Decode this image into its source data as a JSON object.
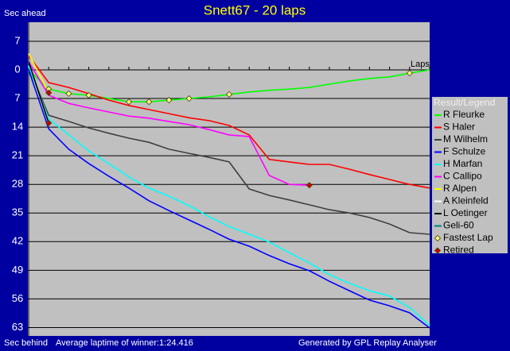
{
  "chart_data": {
    "type": "line",
    "title": "Snett67 - 20 laps",
    "y_label_top": "Sec ahead",
    "y_label_bottom": "Sec behind",
    "x_label": "Laps",
    "footer_note": "Average laptime of winner:1:24.416",
    "footer_credit": "Generated by GPL Replay Analyser",
    "legend_title": "Result/Legend",
    "grid": true,
    "y_inverted": true,
    "xlim": [
      0,
      20
    ],
    "ylim": [
      -11.65,
      65.05
    ],
    "yticks": [
      {
        "value": -7,
        "label": "7"
      },
      0,
      7,
      14,
      21,
      28,
      35,
      42,
      49,
      56,
      63
    ],
    "x": [
      0,
      1,
      2,
      3,
      4,
      5,
      6,
      7,
      8,
      9,
      10,
      11,
      12,
      13,
      14,
      15,
      16,
      17,
      18,
      19,
      20
    ],
    "series": [
      {
        "name": "R Fleurke",
        "color": "#00ff00",
        "values": [
          0,
          4.7,
          5.8,
          6.2,
          7,
          7.8,
          7.8,
          7.4,
          7,
          6.6,
          6,
          5.4,
          5,
          4.7,
          4.3,
          3.5,
          2.7,
          2.1,
          1.7,
          0.8,
          0
        ]
      },
      {
        "name": "S Haler",
        "color": "#ff0000",
        "values": [
          -3.5,
          3.1,
          4.3,
          5.8,
          7.4,
          8.7,
          9.7,
          10.7,
          11.7,
          12.4,
          13.6,
          15.9,
          21.9,
          22.5,
          23.1,
          23.1,
          24.3,
          25.6,
          26.8,
          28,
          28.9
        ]
      },
      {
        "name": "M Wilhelm",
        "color": "#404040",
        "values": [
          -0.6,
          11.1,
          12.6,
          14.2,
          15.5,
          16.7,
          17.7,
          19.4,
          20.4,
          21.4,
          22.5,
          29.1,
          30.7,
          31.8,
          33,
          34.2,
          35,
          36.1,
          37.7,
          39.8,
          40.2
        ]
      },
      {
        "name": "F Schulze",
        "color": "#0000ff",
        "values": [
          0,
          14.4,
          19.4,
          22.9,
          26,
          28.9,
          32,
          34.4,
          36.7,
          39,
          41.4,
          43.1,
          45.4,
          47.4,
          49.1,
          51.7,
          54,
          56.3,
          57.7,
          59.4,
          63.1
        ]
      },
      {
        "name": "H Marfan",
        "color": "#00ffff",
        "values": [
          -1,
          12,
          15.9,
          19.8,
          22.9,
          26.2,
          28.9,
          30.9,
          33.2,
          35.9,
          38.3,
          40.2,
          42.1,
          44.7,
          47.2,
          50.1,
          52.2,
          54,
          55.3,
          58.1,
          62.5
        ]
      },
      {
        "name": "C Callipo",
        "color": "#ff00ff",
        "values": [
          -2,
          6.2,
          8.2,
          9.3,
          10.3,
          11.3,
          11.8,
          12.6,
          13.4,
          14.6,
          15.9,
          16.3,
          25.8,
          28,
          28.2,
          null,
          null,
          null,
          null,
          null,
          null
        ]
      },
      {
        "name": "R Alpen",
        "color": "#ffff00",
        "values": [
          -4,
          5.6,
          null,
          null,
          null,
          null,
          null,
          null,
          null,
          null,
          null,
          null,
          null,
          null,
          null,
          null,
          null,
          null,
          null,
          null,
          null
        ]
      },
      {
        "name": "A Kleinfeld",
        "color": "#ffffff",
        "values": [
          -2.5,
          null,
          null,
          null,
          null,
          null,
          null,
          null,
          null,
          null,
          null,
          null,
          null,
          null,
          null,
          null,
          null,
          null,
          null,
          null,
          null
        ]
      },
      {
        "name": "L Oetinger",
        "color": "#000000",
        "values": [
          -2,
          13,
          null,
          null,
          null,
          null,
          null,
          null,
          null,
          null,
          null,
          null,
          null,
          null,
          null,
          null,
          null,
          null,
          null,
          null,
          null
        ]
      },
      {
        "name": "Geli-60",
        "color": "#008080",
        "values": [
          -1.5,
          null,
          null,
          null,
          null,
          null,
          null,
          null,
          null,
          null,
          null,
          null,
          null,
          null,
          null,
          null,
          null,
          null,
          null,
          null,
          null
        ]
      }
    ],
    "markers": [
      {
        "name": "Fastest Lap",
        "color": "#ffff80",
        "x": [
          1,
          2,
          3,
          5,
          6,
          7,
          8,
          10,
          19
        ],
        "values": [
          4.7,
          5.8,
          6.2,
          7.8,
          7.8,
          7.4,
          7,
          6,
          0.8
        ]
      },
      {
        "name": "Retired",
        "color": "#cc0000",
        "x": [
          1,
          1,
          14
        ],
        "values": [
          5.6,
          13,
          28.2
        ]
      }
    ]
  }
}
